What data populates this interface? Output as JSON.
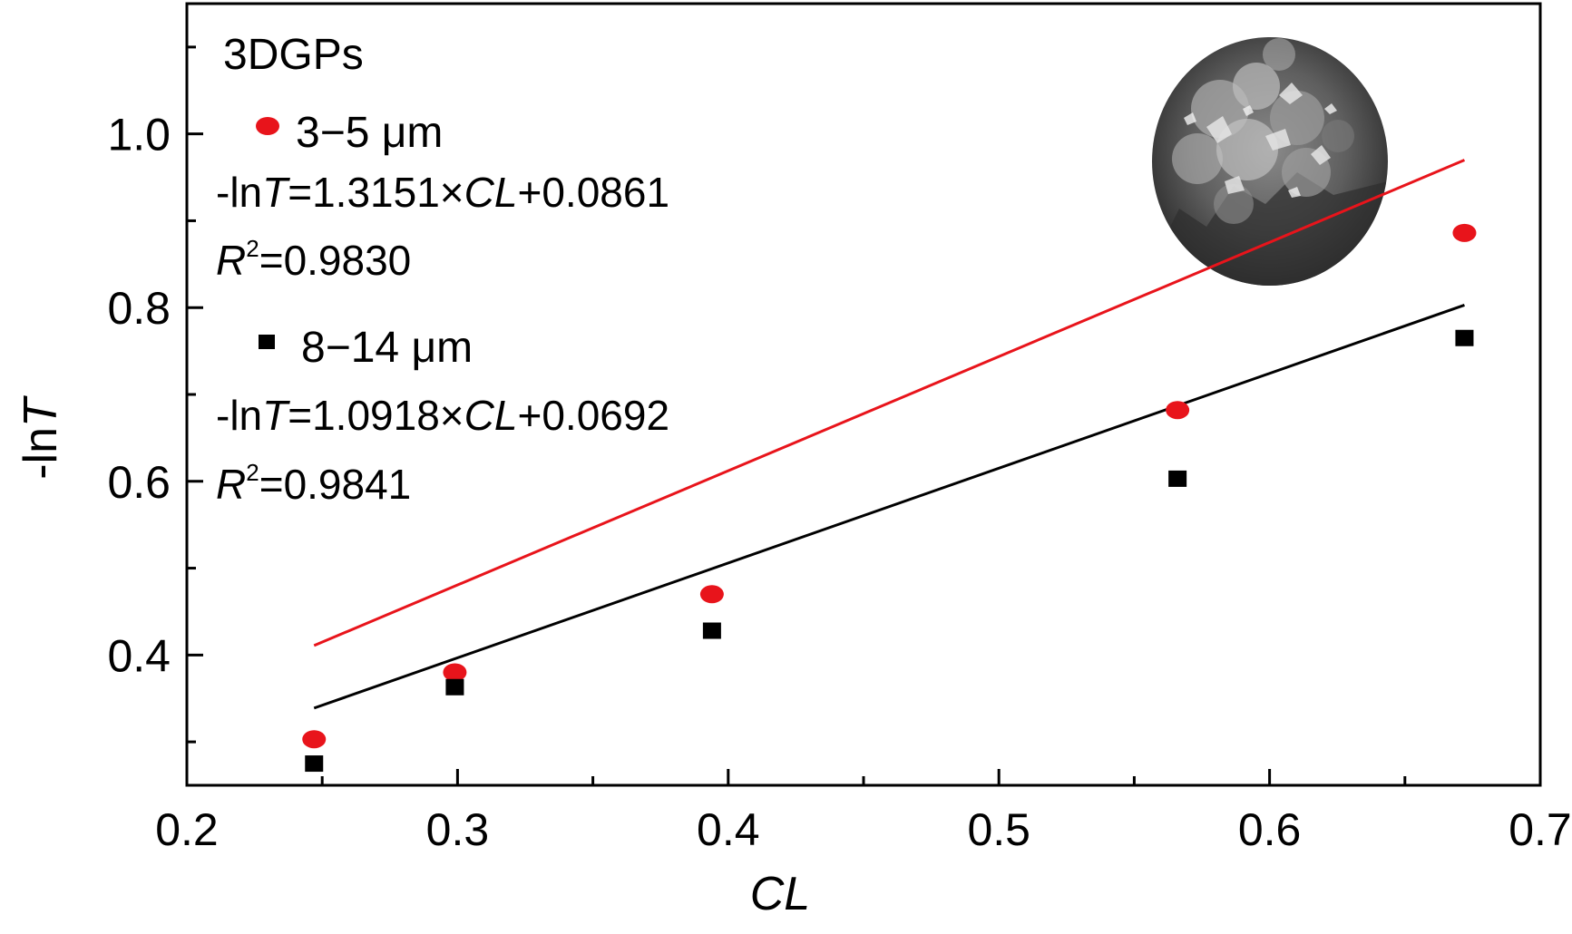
{
  "chart_data": {
    "type": "scatter",
    "title": "",
    "xlabel": "CL",
    "ylabel": "-lnT",
    "xlim": [
      0.2,
      0.7
    ],
    "ylim": [
      0.25,
      1.15
    ],
    "x_ticks": [
      0.2,
      0.3,
      0.4,
      0.5,
      0.6,
      0.7
    ],
    "x_tick_labels": [
      "0.2",
      "0.3",
      "0.4",
      "0.5",
      "0.6",
      "0.7"
    ],
    "y_ticks": [
      0.4,
      0.6,
      0.8,
      1.0
    ],
    "y_tick_labels": [
      "0.4",
      "0.6",
      "0.8",
      "1.0"
    ],
    "grid": false,
    "legend_position": "top-left",
    "annotation": "3DGPs",
    "inset_image": "SEM micrograph of 3DGPs particles (circular, top-right)",
    "series": [
      {
        "name": "3−5 μm",
        "color": "#e8141b",
        "marker": "circle",
        "x": [
          0.247,
          0.299,
          0.394,
          0.566,
          0.672
        ],
        "y": [
          0.303,
          0.38,
          0.47,
          0.682,
          0.886
        ],
        "fit": {
          "slope": 1.3151,
          "intercept": 0.0861
        },
        "equation": {
          "prefix": "-ln",
          "T": "T",
          "mid": "=1.3151×",
          "CL": "CL",
          "suffix": "+0.0861",
          "R": "R",
          "sup": "2",
          "r2": "=0.9830"
        }
      },
      {
        "name": "8−14 μm",
        "color": "#000000",
        "marker": "square",
        "x": [
          0.247,
          0.299,
          0.394,
          0.566,
          0.672
        ],
        "y": [
          0.275,
          0.363,
          0.428,
          0.603,
          0.765
        ],
        "fit": {
          "slope": 1.0918,
          "intercept": 0.0692
        },
        "equation": {
          "prefix": "-ln",
          "T": "T",
          "mid": "=1.0918×",
          "CL": "CL",
          "suffix": "+0.0692",
          "R": "R",
          "sup": "2",
          "r2": "=0.9841"
        }
      }
    ]
  }
}
